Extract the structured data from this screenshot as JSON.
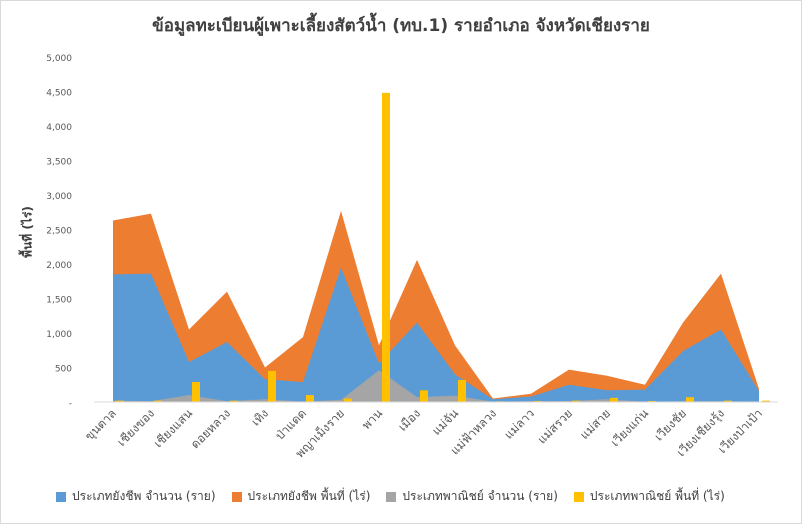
{
  "chart_data": {
    "type": "area",
    "title": "ข้อมูลทะเบียนผู้เพาะเลี้ยงสัตว์น้ำ (ทบ.1) รายอำเภอ จังหวัดเชียงราย",
    "ylabel": "พื้นที่ (ไร่)",
    "xlabel": "",
    "ylim": [
      0,
      5000
    ],
    "yticks": [
      "-",
      "500",
      "1,000",
      "1,500",
      "2,000",
      "2,500",
      "3,000",
      "3,500",
      "4,000",
      "4,500",
      "5,000"
    ],
    "grid": false,
    "legend": "bottom",
    "categories": [
      "ขุนตาล",
      "เชียงของ",
      "เชียงแสน",
      "ดอยหลวง",
      "เทิง",
      "ป่าแดด",
      "พญาเม็งราย",
      "พาน",
      "เมือง",
      "แม่จัน",
      "แม่ฟ้าหลวง",
      "แม่ลาว",
      "แม่สรวย",
      "แม่สาย",
      "เวียงแก่น",
      "เวียงชัย",
      "เวียงเชียงรุ้ง",
      "เวียงป่าเป้า"
    ],
    "series": [
      {
        "name": "ประเภทยังชีพ  จำนวน (ราย)",
        "color": "#5b9bd5",
        "values": [
          1850,
          1860,
          580,
          870,
          330,
          290,
          1950,
          560,
          1150,
          400,
          40,
          80,
          250,
          170,
          180,
          740,
          1050,
          160
        ]
      },
      {
        "name": "ประเภทยังชีพ  พื้นที่ (ไร่)",
        "color": "#ed7d31",
        "values": [
          2630,
          2730,
          1050,
          1600,
          500,
          940,
          2770,
          820,
          2060,
          820,
          50,
          120,
          470,
          380,
          250,
          1150,
          1860,
          190
        ]
      },
      {
        "name": "ประเภทพาณิชย์ จำนวน (ราย)",
        "color": "#a5a5a5",
        "values": [
          20,
          10,
          100,
          10,
          40,
          5,
          30,
          460,
          70,
          90,
          5,
          10,
          15,
          40,
          5,
          10,
          10,
          5
        ]
      },
      {
        "name": "ประเภทพาณิชย์  พื้นที่ (ไร่)",
        "color": "#ffc000",
        "values": [
          20,
          20,
          290,
          20,
          450,
          100,
          50,
          4480,
          170,
          320,
          10,
          15,
          20,
          60,
          15,
          70,
          20,
          20
        ]
      }
    ]
  }
}
